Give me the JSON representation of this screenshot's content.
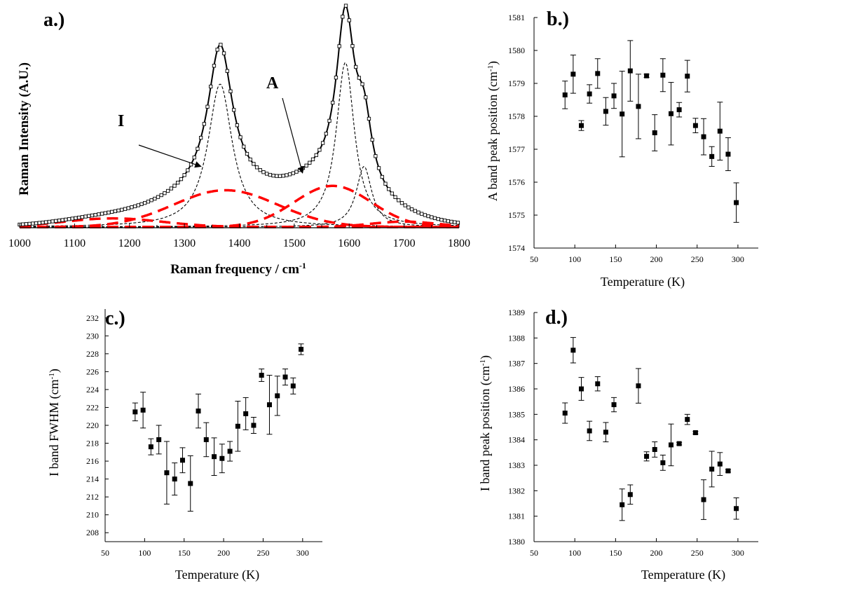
{
  "chart_data": [
    {
      "panel": "a.)",
      "type": "line",
      "xlabel": "Raman frequency / cm",
      "xlabel_sup": "-1",
      "ylabel": "Raman Intensity (A.U.)",
      "xlim": [
        1000,
        1800
      ],
      "ylim": [
        0,
        1.0
      ],
      "xticks": [
        "1000",
        "1100",
        "1200",
        "1300",
        "1400",
        "1500",
        "1600",
        "1700",
        "1800"
      ],
      "yticks": [],
      "annotations": [
        {
          "text": "I",
          "points_to_x": 1330,
          "points_to_y": 0.28
        },
        {
          "text": "A",
          "points_to_x": 1515,
          "points_to_y": 0.25
        }
      ],
      "peaks": [
        {
          "kind": "lorentzian",
          "center": 1365,
          "height": 0.66,
          "hwhm": 27,
          "color": "#000000",
          "style": "dashed-thin"
        },
        {
          "kind": "lorentzian",
          "center": 1593,
          "height": 0.76,
          "hwhm": 20,
          "color": "#000000",
          "style": "dashed-thin"
        },
        {
          "kind": "lorentzian",
          "center": 1627,
          "height": 0.28,
          "hwhm": 17,
          "color": "#000000",
          "style": "dashed-thin"
        },
        {
          "kind": "gaussian",
          "center": 1375,
          "height": 0.17,
          "sigma": 95,
          "color": "#ff0000",
          "style": "dashed-thick"
        },
        {
          "kind": "gaussian",
          "center": 1570,
          "height": 0.19,
          "sigma": 70,
          "color": "#ff0000",
          "style": "dashed-thick"
        },
        {
          "kind": "gaussian",
          "center": 1170,
          "height": 0.04,
          "sigma": 90,
          "color": "#ff0000",
          "style": "dashed-thick"
        },
        {
          "kind": "gaussian",
          "center": 1700,
          "height": 0.025,
          "sigma": 60,
          "color": "#ff0000",
          "style": "dashed-thick"
        }
      ],
      "fit": {
        "color": "#000000",
        "marker": "open-square"
      }
    },
    {
      "panel": "b.)",
      "type": "scatter",
      "xlabel": "Temperature (K)",
      "ylabel": "A band peak position (cm",
      "ylabel_sup": "-1",
      "ylabel_tail": ")",
      "xlim": [
        50,
        325
      ],
      "ylim": [
        1574,
        1581
      ],
      "xticks": [
        "50",
        "100",
        "150",
        "200",
        "250",
        "300"
      ],
      "yticks": [
        "1574",
        "1575",
        "1576",
        "1577",
        "1578",
        "1579",
        "1580",
        "1581"
      ],
      "points": [
        {
          "x": 88,
          "y": 1578.65,
          "err": 0.42
        },
        {
          "x": 98,
          "y": 1579.28,
          "err": 0.58
        },
        {
          "x": 108,
          "y": 1577.72,
          "err": 0.15
        },
        {
          "x": 118,
          "y": 1578.68,
          "err": 0.28
        },
        {
          "x": 128,
          "y": 1579.3,
          "err": 0.45
        },
        {
          "x": 138,
          "y": 1578.15,
          "err": 0.42
        },
        {
          "x": 148,
          "y": 1578.62,
          "err": 0.38
        },
        {
          "x": 158,
          "y": 1578.07,
          "err": 1.3
        },
        {
          "x": 168,
          "y": 1579.38,
          "err": 0.92
        },
        {
          "x": 178,
          "y": 1578.3,
          "err": 0.98
        },
        {
          "x": 188,
          "y": 1579.23,
          "err": 0.05
        },
        {
          "x": 198,
          "y": 1577.5,
          "err": 0.55
        },
        {
          "x": 208,
          "y": 1579.25,
          "err": 0.5
        },
        {
          "x": 218,
          "y": 1578.08,
          "err": 0.95
        },
        {
          "x": 228,
          "y": 1578.2,
          "err": 0.22
        },
        {
          "x": 238,
          "y": 1579.22,
          "err": 0.48
        },
        {
          "x": 248,
          "y": 1577.72,
          "err": 0.22
        },
        {
          "x": 258,
          "y": 1577.38,
          "err": 0.55
        },
        {
          "x": 268,
          "y": 1576.78,
          "err": 0.3
        },
        {
          "x": 278,
          "y": 1577.55,
          "err": 0.88
        },
        {
          "x": 288,
          "y": 1576.85,
          "err": 0.5
        },
        {
          "x": 298,
          "y": 1575.38,
          "err": 0.6
        }
      ]
    },
    {
      "panel": "c.)",
      "type": "scatter",
      "xlabel": "Temperature (K)",
      "ylabel": "I band FWHM (cm",
      "ylabel_sup": "-1",
      "ylabel_tail": ")",
      "xlim": [
        50,
        325
      ],
      "ylim": [
        207,
        233
      ],
      "xticks": [
        "50",
        "100",
        "150",
        "200",
        "250",
        "300"
      ],
      "yticks": [
        "208",
        "210",
        "212",
        "214",
        "216",
        "218",
        "220",
        "222",
        "224",
        "226",
        "228",
        "230",
        "232"
      ],
      "points": [
        {
          "x": 88,
          "y": 221.5,
          "err": 1.0
        },
        {
          "x": 98,
          "y": 221.7,
          "err": 2.0
        },
        {
          "x": 108,
          "y": 217.6,
          "err": 0.9
        },
        {
          "x": 118,
          "y": 218.4,
          "err": 1.6
        },
        {
          "x": 128,
          "y": 214.7,
          "err": 3.5
        },
        {
          "x": 138,
          "y": 214.0,
          "err": 1.8
        },
        {
          "x": 148,
          "y": 216.1,
          "err": 1.4
        },
        {
          "x": 158,
          "y": 213.5,
          "err": 3.1
        },
        {
          "x": 168,
          "y": 221.6,
          "err": 1.9
        },
        {
          "x": 178,
          "y": 218.4,
          "err": 1.9
        },
        {
          "x": 188,
          "y": 216.5,
          "err": 2.1
        },
        {
          "x": 198,
          "y": 216.3,
          "err": 1.6
        },
        {
          "x": 208,
          "y": 217.1,
          "err": 1.1
        },
        {
          "x": 218,
          "y": 219.9,
          "err": 2.8
        },
        {
          "x": 228,
          "y": 221.3,
          "err": 1.8
        },
        {
          "x": 238,
          "y": 220.0,
          "err": 0.9
        },
        {
          "x": 248,
          "y": 225.6,
          "err": 0.7
        },
        {
          "x": 258,
          "y": 222.3,
          "err": 3.3
        },
        {
          "x": 268,
          "y": 223.3,
          "err": 2.2
        },
        {
          "x": 278,
          "y": 225.4,
          "err": 0.9
        },
        {
          "x": 288,
          "y": 224.4,
          "err": 0.9
        },
        {
          "x": 298,
          "y": 228.5,
          "err": 0.6
        }
      ]
    },
    {
      "panel": "d.)",
      "type": "scatter",
      "xlabel": "Temperature (K)",
      "ylabel": "I band peak position (cm",
      "ylabel_sup": "-1",
      "ylabel_tail": ")",
      "xlim": [
        50,
        325
      ],
      "ylim": [
        1380,
        1389
      ],
      "xticks": [
        "50",
        "100",
        "150",
        "200",
        "250",
        "300"
      ],
      "yticks": [
        "1380",
        "1381",
        "1382",
        "1383",
        "1384",
        "1385",
        "1386",
        "1387",
        "1388",
        "1389"
      ],
      "points": [
        {
          "x": 88,
          "y": 1385.05,
          "err": 0.4
        },
        {
          "x": 98,
          "y": 1387.52,
          "err": 0.5
        },
        {
          "x": 108,
          "y": 1386.0,
          "err": 0.45
        },
        {
          "x": 118,
          "y": 1384.35,
          "err": 0.38
        },
        {
          "x": 128,
          "y": 1386.2,
          "err": 0.28
        },
        {
          "x": 138,
          "y": 1384.3,
          "err": 0.38
        },
        {
          "x": 148,
          "y": 1385.38,
          "err": 0.28
        },
        {
          "x": 158,
          "y": 1381.45,
          "err": 0.62
        },
        {
          "x": 168,
          "y": 1381.85,
          "err": 0.38
        },
        {
          "x": 178,
          "y": 1386.12,
          "err": 0.68
        },
        {
          "x": 188,
          "y": 1383.35,
          "err": 0.18
        },
        {
          "x": 198,
          "y": 1383.62,
          "err": 0.3
        },
        {
          "x": 208,
          "y": 1383.1,
          "err": 0.3
        },
        {
          "x": 218,
          "y": 1383.8,
          "err": 0.82
        },
        {
          "x": 228,
          "y": 1383.85,
          "err": 0.05
        },
        {
          "x": 238,
          "y": 1384.8,
          "err": 0.2
        },
        {
          "x": 248,
          "y": 1384.28,
          "err": 0.05
        },
        {
          "x": 258,
          "y": 1381.65,
          "err": 0.78
        },
        {
          "x": 268,
          "y": 1382.85,
          "err": 0.7
        },
        {
          "x": 278,
          "y": 1383.05,
          "err": 0.45
        },
        {
          "x": 288,
          "y": 1382.78,
          "err": 0.05
        },
        {
          "x": 298,
          "y": 1381.3,
          "err": 0.42
        }
      ]
    }
  ]
}
